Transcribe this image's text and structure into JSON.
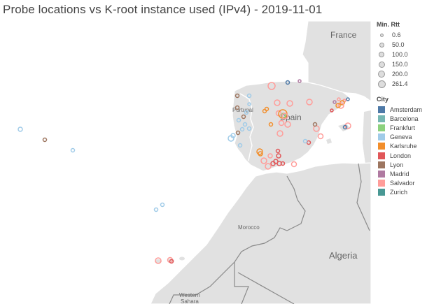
{
  "title": "Probe locations vs K-root instance used (IPv4) - 2019-11-01",
  "legend": {
    "size_title": "Min. Rtt",
    "size_values": [
      "0.6",
      "50.0",
      "100.0",
      "150.0",
      "200.0",
      "261.4"
    ],
    "city_title": "City",
    "cities": [
      {
        "name": "Amsterdam",
        "color": "#4e79a7"
      },
      {
        "name": "Barcelona",
        "color": "#76b7b2"
      },
      {
        "name": "Frankfurt",
        "color": "#8cd17d"
      },
      {
        "name": "Geneva",
        "color": "#a0cbe8"
      },
      {
        "name": "Karlsruhe",
        "color": "#f28e2b"
      },
      {
        "name": "London",
        "color": "#e15759"
      },
      {
        "name": "Lyon",
        "color": "#9d7660"
      },
      {
        "name": "Madrid",
        "color": "#b07aa1"
      },
      {
        "name": "Salvador",
        "color": "#ff9d9a"
      },
      {
        "name": "Zurich",
        "color": "#499894"
      }
    ]
  },
  "map_labels": {
    "france": "France",
    "portugal": "Portugal",
    "spain": "Spain",
    "morocco": "Morocco",
    "algeria": "Algeria",
    "western_sahara_1": "Western",
    "western_sahara_2": "Sahara"
  },
  "colors": {
    "land": "#e1e1e1",
    "sea": "#ffffff",
    "border": "#ffffff"
  }
}
